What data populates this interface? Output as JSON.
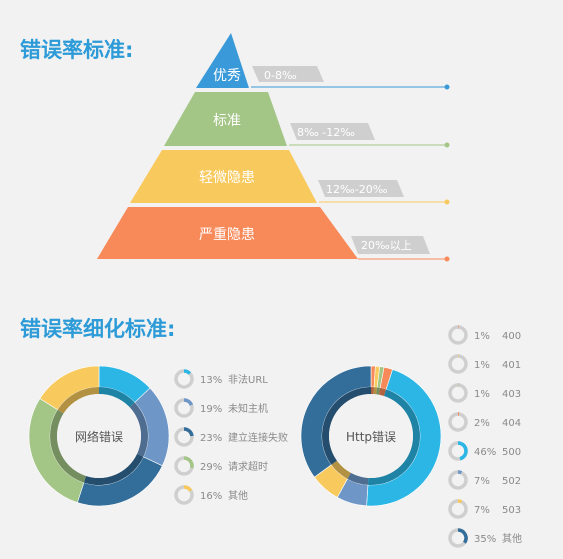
{
  "title_main": "错误率标准:",
  "title_detail": "错误率细化标准:",
  "colors": {
    "excellent": "#3a9ad9",
    "standard": "#a3c585",
    "minor": "#f8c95c",
    "severe": "#f88958",
    "tag": "#cfcfcf",
    "ring_gray": "#cfcfcf"
  },
  "pyramid": [
    {
      "label": "优秀",
      "range": "0-8‰"
    },
    {
      "label": "标准",
      "range": "8‰ -12‰"
    },
    {
      "label": "轻微隐患",
      "range": "12‰-20‰"
    },
    {
      "label": "严重隐患",
      "range": "20‰以上"
    }
  ],
  "network_chart": {
    "center_label": "网络错误",
    "slices": [
      {
        "percent": "13%",
        "value": 13,
        "label": "非法URL",
        "color": "#2bb6e6"
      },
      {
        "percent": "19%",
        "value": 19,
        "label": "未知主机",
        "color": "#6e97c8"
      },
      {
        "percent": "23%",
        "value": 23,
        "label": "建立连接失败",
        "color": "#336d99"
      },
      {
        "percent": "29%",
        "value": 29,
        "label": "请求超时",
        "color": "#a3c585"
      },
      {
        "percent": "16%",
        "value": 16,
        "label": "其他",
        "color": "#f8c95c"
      }
    ]
  },
  "http_chart": {
    "center_label": "Http错误",
    "slices": [
      {
        "percent": "1%",
        "value": 1,
        "label": "400",
        "color": "#f88958"
      },
      {
        "percent": "1%",
        "value": 1,
        "label": "401",
        "color": "#f8c95c"
      },
      {
        "percent": "1%",
        "value": 1,
        "label": "403",
        "color": "#a3c585"
      },
      {
        "percent": "2%",
        "value": 2,
        "label": "404",
        "color": "#f88958"
      },
      {
        "percent": "46%",
        "value": 46,
        "label": "500",
        "color": "#2bb6e6"
      },
      {
        "percent": "7%",
        "value": 7,
        "label": "502",
        "color": "#6e97c8"
      },
      {
        "percent": "7%",
        "value": 7,
        "label": "503",
        "color": "#f8c95c"
      },
      {
        "percent": "35%",
        "value": 35,
        "label": "其他",
        "color": "#336d99"
      }
    ]
  }
}
